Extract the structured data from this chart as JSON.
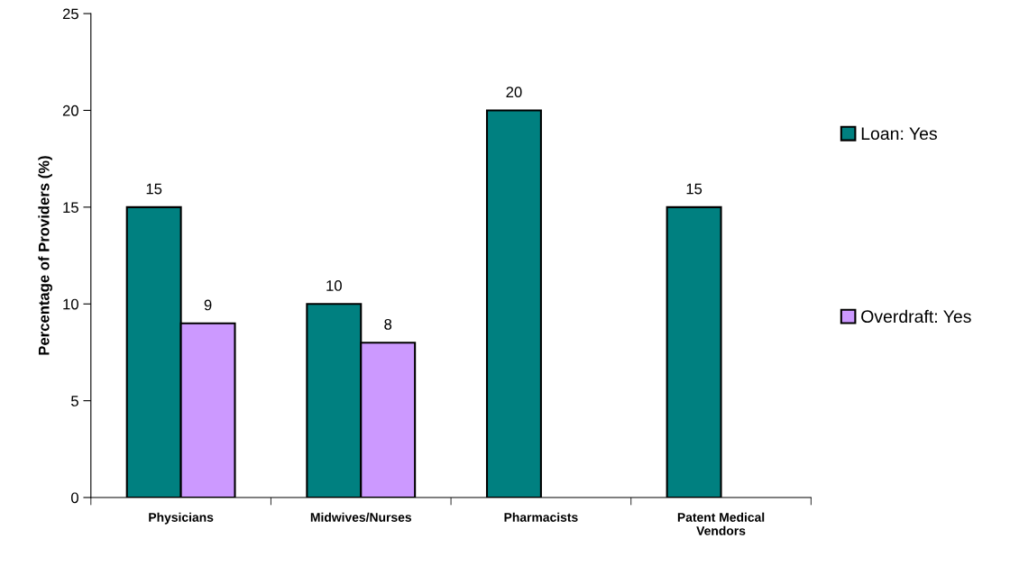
{
  "chart_data": {
    "type": "bar",
    "ylabel": "Percentage of Providers (%)",
    "categories": [
      "Physicians",
      "Midwives/Nurses",
      "Pharmacists",
      "Patent Medical\nVendors"
    ],
    "series": [
      {
        "name": "Loan: Yes",
        "color": "#008080",
        "values": [
          15,
          10,
          20,
          15
        ]
      },
      {
        "name": "Overdraft: Yes",
        "color": "#cc99ff",
        "values": [
          9,
          8,
          null,
          null
        ]
      }
    ],
    "ylim": [
      0,
      25
    ],
    "yticks": [
      0,
      5,
      10,
      15,
      20,
      25
    ],
    "grid": false,
    "legend": "right",
    "data_labels": true
  }
}
